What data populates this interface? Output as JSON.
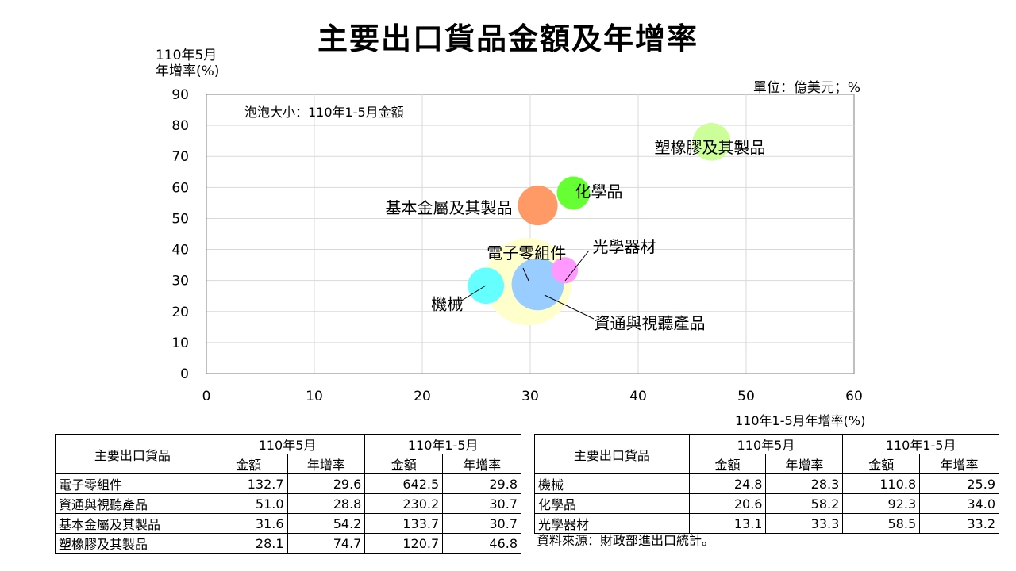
{
  "title": "主要出口貨品金額及年增率",
  "unit_label": "單位：億美元；%",
  "chart_data": {
    "type": "bubble",
    "title": "主要出口貨品金額及年增率",
    "xlabel": "110年1-5月年增率(%)",
    "ylabel": "110年5月 年增率(%)",
    "ylabel_lines": [
      "110年5月",
      "年增率(%)"
    ],
    "size_note": "泡泡大小：110年1-5月金額",
    "xlim": [
      0,
      60
    ],
    "ylim": [
      0,
      90
    ],
    "xticks": [
      0,
      10,
      20,
      30,
      40,
      50,
      60
    ],
    "yticks": [
      0,
      10,
      20,
      30,
      40,
      50,
      60,
      70,
      80,
      90
    ],
    "grid": true,
    "points": [
      {
        "label": "電子零組件",
        "x": 29.8,
        "y": 29.6,
        "size": 642.5,
        "color": "#FFFFCC"
      },
      {
        "label": "資通與視聽產品",
        "x": 30.7,
        "y": 28.8,
        "size": 230.2,
        "color": "#99CCFF"
      },
      {
        "label": "基本金屬及其製品",
        "x": 30.7,
        "y": 54.2,
        "size": 133.7,
        "color": "#FF9966"
      },
      {
        "label": "塑橡膠及其製品",
        "x": 46.8,
        "y": 74.7,
        "size": 120.7,
        "color": "#CCFF99"
      },
      {
        "label": "機械",
        "x": 25.9,
        "y": 28.3,
        "size": 110.8,
        "color": "#66FFFF"
      },
      {
        "label": "化學品",
        "x": 34.0,
        "y": 58.2,
        "size": 92.3,
        "color": "#66FF33"
      },
      {
        "label": "光學器材",
        "x": 33.2,
        "y": 33.3,
        "size": 58.5,
        "color": "#FF99FF"
      }
    ]
  },
  "table_left": {
    "header_item": "主要出口貨品",
    "group1": "110年5月",
    "group2": "110年1-5月",
    "sub": [
      "金額",
      "年增率",
      "金額",
      "年增率"
    ],
    "rows": [
      [
        "電子零組件",
        "132.7",
        "29.6",
        "642.5",
        "29.8"
      ],
      [
        "資通與視聽產品",
        "51.0",
        "28.8",
        "230.2",
        "30.7"
      ],
      [
        "基本金屬及其製品",
        "31.6",
        "54.2",
        "133.7",
        "30.7"
      ],
      [
        "塑橡膠及其製品",
        "28.1",
        "74.7",
        "120.7",
        "46.8"
      ]
    ]
  },
  "table_right": {
    "header_item": "主要出口貨品",
    "group1": "110年5月",
    "group2": "110年1-5月",
    "sub": [
      "金額",
      "年增率",
      "金額",
      "年增率"
    ],
    "rows": [
      [
        "機械",
        "24.8",
        "28.3",
        "110.8",
        "25.9"
      ],
      [
        "化學品",
        "20.6",
        "58.2",
        "92.3",
        "34.0"
      ],
      [
        "光學器材",
        "13.1",
        "33.3",
        "58.5",
        "33.2"
      ]
    ]
  },
  "source": "資料來源：財政部進出口統計。"
}
